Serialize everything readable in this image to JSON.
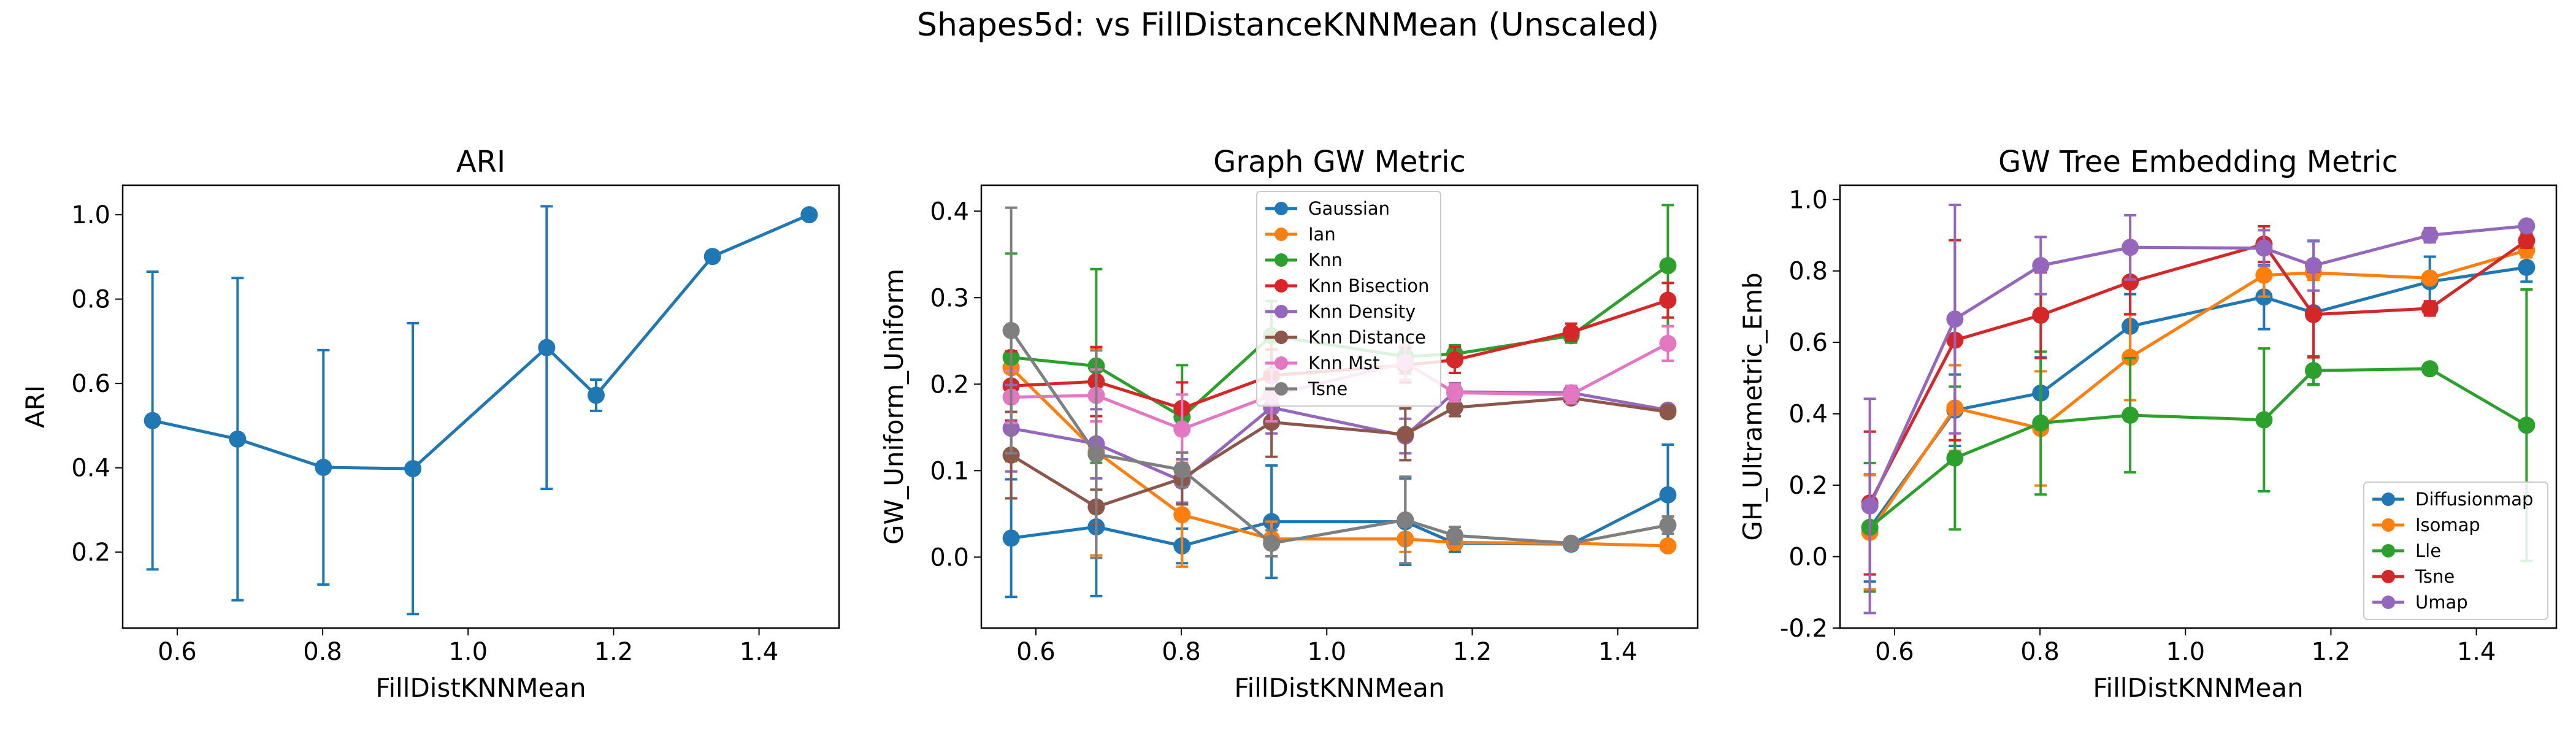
{
  "figure": {
    "title": "Shapes5d: vs FillDistanceKNNMean (Unscaled)"
  },
  "colors": {
    "blue": "#1f77b4",
    "orange": "#ff7f0e",
    "green": "#2ca02c",
    "red": "#d62728",
    "purple": "#9467bd",
    "brown": "#8c564b",
    "pink": "#e377c2",
    "gray": "#7f7f7f"
  },
  "chart_data": [
    {
      "type": "line",
      "title": "ARI",
      "xlabel": "FillDistKNNMean",
      "ylabel": "ARI",
      "xlim": [
        0.525,
        1.51
      ],
      "ylim": [
        0.02,
        1.07
      ],
      "xticks": [
        0.6,
        0.8,
        1.0,
        1.2,
        1.4
      ],
      "yticks": [
        0.2,
        0.4,
        0.6,
        0.8,
        1.0
      ],
      "x": [
        0.566,
        0.683,
        0.801,
        0.924,
        1.108,
        1.176,
        1.336,
        1.469
      ],
      "legend": null,
      "series": [
        {
          "name": "",
          "color": "#1f77b4",
          "values": [
            0.512,
            0.468,
            0.401,
            0.398,
            0.685,
            0.572,
            0.901,
            1.0
          ],
          "err": [
            0.353,
            0.382,
            0.278,
            0.345,
            0.335,
            0.037,
            0.0,
            0.0
          ]
        }
      ]
    },
    {
      "type": "line",
      "title": "Graph GW Metric",
      "xlabel": "FillDistKNNMean",
      "ylabel": "GW_Uniform_Uniform",
      "xlim": [
        0.525,
        1.51
      ],
      "ylim": [
        -0.082,
        0.43
      ],
      "xticks": [
        0.6,
        0.8,
        1.0,
        1.2,
        1.4
      ],
      "yticks": [
        0.0,
        0.1,
        0.2,
        0.3,
        0.4
      ],
      "x": [
        0.566,
        0.683,
        0.801,
        0.924,
        1.108,
        1.176,
        1.336,
        1.469
      ],
      "legend": "upper-center",
      "series": [
        {
          "name": "Gaussian",
          "color": "#1f77b4",
          "values": [
            0.022,
            0.035,
            0.013,
            0.041,
            0.041,
            0.016,
            0.015,
            0.072
          ],
          "err": [
            0.068,
            0.08,
            0.02,
            0.065,
            0.05,
            0.01,
            0.005,
            0.058
          ]
        },
        {
          "name": "Ian",
          "color": "#ff7f0e",
          "values": [
            0.219,
            0.122,
            0.049,
            0.021,
            0.021,
            0.017,
            0.016,
            0.013
          ],
          "err": [
            0.04,
            0.12,
            0.06,
            0.02,
            0.015,
            0.008,
            0.005,
            0.005
          ]
        },
        {
          "name": "Knn",
          "color": "#2ca02c",
          "values": [
            0.231,
            0.221,
            0.162,
            0.256,
            0.232,
            0.235,
            0.256,
            0.337
          ],
          "err": [
            0.12,
            0.112,
            0.06,
            0.04,
            0.02,
            0.01,
            0.008,
            0.07
          ]
        },
        {
          "name": "Knn Bisection",
          "color": "#d62728",
          "values": [
            0.198,
            0.203,
            0.172,
            0.21,
            0.222,
            0.228,
            0.26,
            0.297
          ],
          "err": [
            0.04,
            0.04,
            0.03,
            0.03,
            0.02,
            0.015,
            0.01,
            0.02
          ]
        },
        {
          "name": "Knn Density",
          "color": "#9467bd",
          "values": [
            0.149,
            0.131,
            0.088,
            0.173,
            0.14,
            0.191,
            0.19,
            0.17
          ],
          "err": [
            0.05,
            0.04,
            0.025,
            0.03,
            0.02,
            0.01,
            0.008,
            0.005
          ]
        },
        {
          "name": "Knn Distance",
          "color": "#8c564b",
          "values": [
            0.118,
            0.058,
            0.091,
            0.156,
            0.142,
            0.173,
            0.184,
            0.168
          ],
          "err": [
            0.05,
            0.02,
            0.03,
            0.04,
            0.03,
            0.01,
            0.005,
            0.005
          ]
        },
        {
          "name": "Knn Mst",
          "color": "#e377c2",
          "values": [
            0.185,
            0.187,
            0.148,
            0.187,
            0.225,
            0.19,
            0.188,
            0.247
          ],
          "err": [
            0.03,
            0.03,
            0.04,
            0.03,
            0.02,
            0.01,
            0.01,
            0.02
          ]
        },
        {
          "name": "Tsne",
          "color": "#7f7f7f",
          "values": [
            0.262,
            0.119,
            0.101,
            0.016,
            0.043,
            0.025,
            0.016,
            0.037
          ],
          "err": [
            0.142,
            0.12,
            0.02,
            0.015,
            0.05,
            0.01,
            0.005,
            0.01
          ]
        }
      ]
    },
    {
      "type": "line",
      "title": "GW Tree Embedding Metric",
      "xlabel": "FillDistKNNMean",
      "ylabel": "GH_Ultrametric_Emb",
      "xlim": [
        0.525,
        1.51
      ],
      "ylim": [
        -0.2,
        1.04
      ],
      "xticks": [
        0.6,
        0.8,
        1.0,
        1.2,
        1.4
      ],
      "yticks": [
        -0.2,
        0.0,
        0.2,
        0.4,
        0.6,
        0.8,
        1.0
      ],
      "x": [
        0.566,
        0.683,
        0.801,
        0.924,
        1.108,
        1.176,
        1.336,
        1.469
      ],
      "legend": "lower-right",
      "series": [
        {
          "name": "Diffusionmap",
          "color": "#1f77b4",
          "values": [
            0.08,
            0.41,
            0.458,
            0.645,
            0.727,
            0.683,
            0.77,
            0.81
          ],
          "err": [
            0.15,
            0.1,
            0.1,
            0.09,
            0.09,
            0.2,
            0.07,
            0.04
          ]
        },
        {
          "name": "Isomap",
          "color": "#ff7f0e",
          "values": [
            0.068,
            0.416,
            0.359,
            0.558,
            0.788,
            0.795,
            0.78,
            0.858
          ],
          "err": [
            0.16,
            0.12,
            0.16,
            0.12,
            0.06,
            0.02,
            0.01,
            0.02
          ]
        },
        {
          "name": "Lle",
          "color": "#2ca02c",
          "values": [
            0.082,
            0.276,
            0.374,
            0.396,
            0.383,
            0.521,
            0.526,
            0.368
          ],
          "err": [
            0.18,
            0.2,
            0.2,
            0.16,
            0.2,
            0.04,
            0.01,
            0.38
          ]
        },
        {
          "name": "Tsne",
          "color": "#d62728",
          "values": [
            0.15,
            0.606,
            0.676,
            0.769,
            0.875,
            0.678,
            0.695,
            0.885
          ],
          "err": [
            0.2,
            0.28,
            0.12,
            0.09,
            0.05,
            0.12,
            0.02,
            0.02
          ]
        },
        {
          "name": "Umap",
          "color": "#9467bd",
          "values": [
            0.142,
            0.665,
            0.815,
            0.866,
            0.864,
            0.815,
            0.9,
            0.926
          ],
          "err": [
            0.3,
            0.32,
            0.08,
            0.09,
            0.05,
            0.07,
            0.02,
            0.01
          ]
        }
      ]
    }
  ]
}
